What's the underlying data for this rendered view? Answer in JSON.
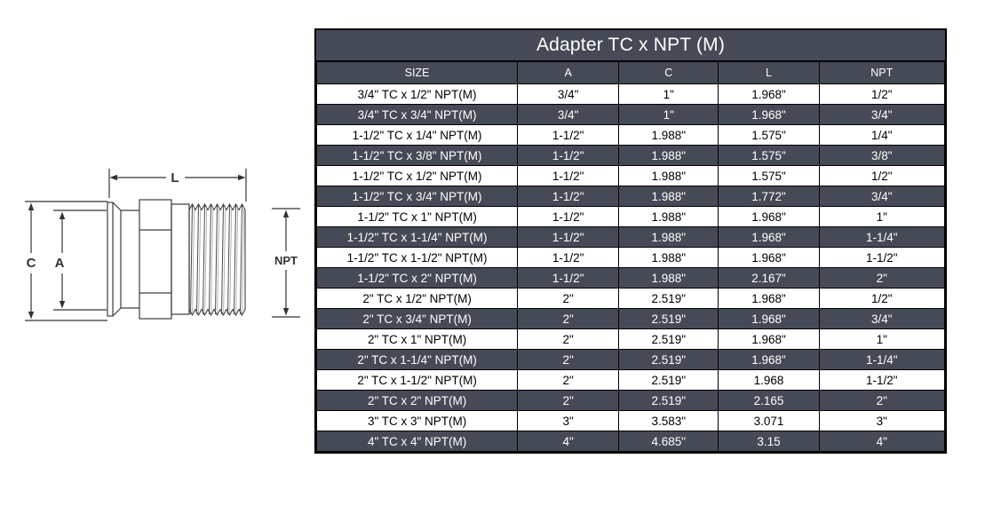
{
  "diagram": {
    "labels": {
      "length": "L",
      "clamp_od": "C",
      "tube_id": "A",
      "thread": "NPT"
    }
  },
  "table": {
    "title": "Adapter TC x NPT (M)",
    "columns": [
      "SIZE",
      "A",
      "C",
      "L",
      "NPT"
    ],
    "rows": [
      [
        "3/4\" TC x 1/2\" NPT(M)",
        "3/4\"",
        "1\"",
        "1.968\"",
        "1/2\""
      ],
      [
        "3/4\" TC x 3/4\" NPT(M)",
        "3/4\"",
        "1\"",
        "1.968\"",
        "3/4\""
      ],
      [
        "1-1/2\" TC x 1/4\" NPT(M)",
        "1-1/2\"",
        "1.988\"",
        "1.575\"",
        "1/4\""
      ],
      [
        "1-1/2\" TC x 3/8\" NPT(M)",
        "1-1/2\"",
        "1.988\"",
        "1.575\"",
        "3/8\""
      ],
      [
        "1-1/2\" TC x 1/2\" NPT(M)",
        "1-1/2\"",
        "1.988\"",
        "1.575\"",
        "1/2\""
      ],
      [
        "1-1/2\" TC x 3/4\" NPT(M)",
        "1-1/2\"",
        "1.988\"",
        "1.772\"",
        "3/4\""
      ],
      [
        "1-1/2\" TC x 1\" NPT(M)",
        "1-1/2\"",
        "1.988\"",
        "1.968\"",
        "1\""
      ],
      [
        "1-1/2\" TC x 1-1/4\" NPT(M)",
        "1-1/2\"",
        "1.988\"",
        "1.968\"",
        "1-1/4\""
      ],
      [
        "1-1/2\" TC x 1-1/2\" NPT(M)",
        "1-1/2\"",
        "1.988\"",
        "1.968\"",
        "1-1/2\""
      ],
      [
        "1-1/2\" TC x 2\" NPT(M)",
        "1-1/2\"",
        "1.988\"",
        "2.167\"",
        "2\""
      ],
      [
        "2\" TC x 1/2\" NPT(M)",
        "2\"",
        "2.519\"",
        "1.968\"",
        "1/2\""
      ],
      [
        "2\" TC x 3/4\" NPT(M)",
        "2\"",
        "2.519\"",
        "1.968\"",
        "3/4\""
      ],
      [
        "2\" TC x 1\" NPT(M)",
        "2\"",
        "2.519\"",
        "1.968\"",
        "1\""
      ],
      [
        "2\" TC x 1-1/4\" NPT(M)",
        "2\"",
        "2.519\"",
        "1.968\"",
        "1-1/4\""
      ],
      [
        "2\" TC x 1-1/2\" NPT(M)",
        "2\"",
        "2.519\"",
        "1.968",
        "1-1/2\""
      ],
      [
        "2\" TC x 2\" NPT(M)",
        "2\"",
        "2.519\"",
        "2.165",
        "2\""
      ],
      [
        "3\" TC x 3\" NPT(M)",
        "3\"",
        "3.583\"",
        "3.071",
        "3\""
      ],
      [
        "4\" TC x 4\" NPT(M)",
        "4\"",
        "4.685\"",
        "3.15",
        "4\""
      ]
    ],
    "colors": {
      "dark_bg": "#464a56",
      "row_bg": "#ffffff",
      "header_text": "#ffffff",
      "row_text": "#000000",
      "border": "#000000"
    }
  }
}
